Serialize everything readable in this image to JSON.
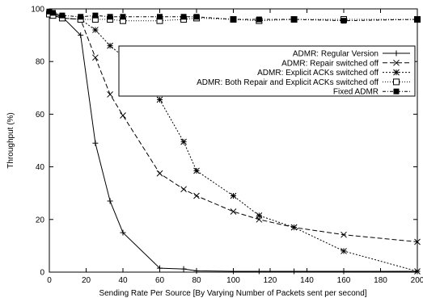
{
  "chart_data": {
    "type": "line",
    "xlabel": "Sending Rate Per Source [By Varying Number of Packets sent per second]",
    "ylabel": "Throughput (%)",
    "xlim": [
      0,
      200
    ],
    "ylim": [
      0,
      100
    ],
    "xticks": [
      0,
      20,
      40,
      60,
      80,
      100,
      120,
      140,
      160,
      180,
      200
    ],
    "yticks": [
      0,
      20,
      40,
      60,
      80,
      100
    ],
    "grid": false,
    "legend_position": "top-right",
    "series": [
      {
        "name": "ADMR: Regular Version",
        "marker": "plus",
        "dash": "",
        "x": [
          0,
          2,
          7,
          17,
          25,
          33,
          40,
          60,
          73,
          80,
          100,
          114,
          133,
          160,
          200
        ],
        "y": [
          98.5,
          98,
          97,
          90,
          49,
          27,
          15,
          1.5,
          1.2,
          0.5,
          0.3,
          0.3,
          0.3,
          0.3,
          0.3
        ]
      },
      {
        "name": "ADMR: Repair switched off",
        "marker": "x",
        "dash": "6,3",
        "x": [
          0,
          2,
          7,
          17,
          25,
          33,
          40,
          60,
          73,
          80,
          100,
          114,
          133,
          160,
          200
        ],
        "y": [
          98.5,
          97.5,
          96.5,
          96,
          81.5,
          67.5,
          59.5,
          37.5,
          31.5,
          29,
          23,
          20,
          17,
          14.2,
          11.5
        ]
      },
      {
        "name": "ADMR: Explicit ACKs switched off",
        "marker": "star",
        "dash": "2,2",
        "x": [
          0,
          2,
          7,
          17,
          25,
          33,
          40,
          60,
          73,
          80,
          100,
          114,
          133,
          160,
          200
        ],
        "y": [
          98.5,
          97.5,
          96.5,
          96,
          92,
          86,
          82,
          65.5,
          49.5,
          38.5,
          29,
          21.5,
          17,
          8,
          0.3
        ]
      },
      {
        "name": "ADMR: Both Repair and Explicit ACKs switched off",
        "marker": "square-open",
        "dash": "1,2",
        "x": [
          0,
          2,
          7,
          17,
          25,
          33,
          40,
          60,
          73,
          80,
          100,
          114,
          133,
          160,
          200
        ],
        "y": [
          98,
          97.5,
          96.5,
          96,
          96,
          96,
          95.5,
          95.5,
          96,
          96.5,
          96,
          95.5,
          96,
          96,
          96
        ]
      },
      {
        "name": "Fixed ADMR",
        "marker": "square-filled",
        "dash": "4,2,1,2",
        "x": [
          0,
          2,
          7,
          17,
          25,
          33,
          40,
          60,
          73,
          80,
          100,
          114,
          133,
          160,
          200
        ],
        "y": [
          99,
          98.5,
          97.5,
          97,
          97.5,
          97,
          97,
          97,
          97,
          97,
          96,
          96,
          96,
          95.5,
          96
        ]
      }
    ]
  }
}
